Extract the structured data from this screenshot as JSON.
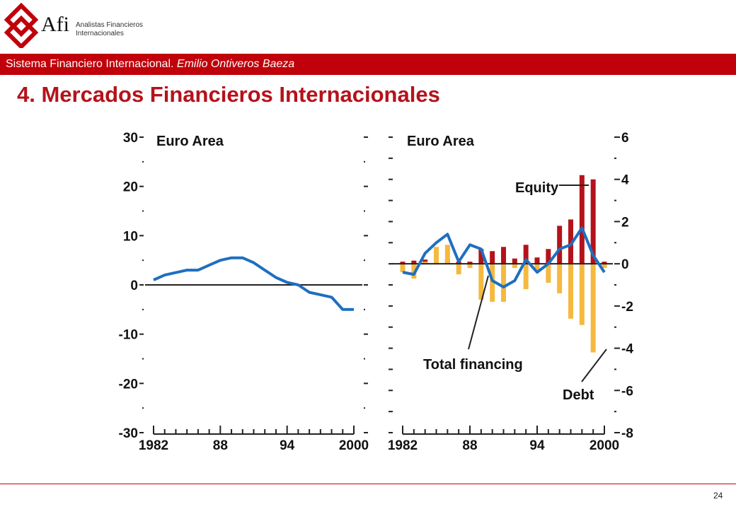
{
  "header": {
    "logo_text": "Afi",
    "org_line1": "Analistas Financieros",
    "org_line2": "Internacionales"
  },
  "banner": {
    "text_plain": "Sistema Financiero Internacional. ",
    "text_italic": "Emilio Ontiveros Baeza"
  },
  "title": "4. Mercados Financieros Internacionales",
  "footer": {
    "page_number": "24"
  },
  "colors": {
    "brand_red": "#c0000a",
    "title_red": "#b5121b",
    "line_blue": "#1e6fc0",
    "equity_red": "#b5121b",
    "debt_orange": "#f5b93f"
  },
  "chart_data": [
    {
      "type": "line",
      "title": "Euro Area",
      "x": [
        1982,
        1983,
        1984,
        1985,
        1986,
        1987,
        1988,
        1989,
        1990,
        1991,
        1992,
        1993,
        1994,
        1995,
        1996,
        1997,
        1998,
        1999,
        2000
      ],
      "xticks": [
        "1982",
        "88",
        "94",
        "2000"
      ],
      "yticks": [
        "30",
        "20",
        "10",
        "0",
        "-10",
        "-20",
        "-30"
      ],
      "ylim": [
        -30,
        30
      ],
      "series": [
        {
          "values": [
            1,
            2,
            2.5,
            3,
            3,
            4,
            5,
            5.5,
            5.5,
            4.5,
            3,
            1.5,
            0.5,
            0,
            -1.5,
            -2,
            -2.5,
            -5,
            -5
          ]
        }
      ],
      "grid": false
    },
    {
      "type": "bar",
      "title": "Euro Area",
      "x": [
        1982,
        1983,
        1984,
        1985,
        1986,
        1987,
        1988,
        1989,
        1990,
        1991,
        1992,
        1993,
        1994,
        1995,
        1996,
        1997,
        1998,
        1999,
        2000
      ],
      "xticks": [
        "1982",
        "88",
        "94",
        "2000"
      ],
      "yticks": [
        "6",
        "4",
        "2",
        "0",
        "-2",
        "-4",
        "-6",
        "-8"
      ],
      "ylim": [
        -8,
        6
      ],
      "series": [
        {
          "name": "Equity",
          "values": [
            0.1,
            0.15,
            0.2,
            0.1,
            0.2,
            0.1,
            0.1,
            0.7,
            0.6,
            0.8,
            0.25,
            0.9,
            0.3,
            0.7,
            1.8,
            2.1,
            4.2,
            4.0,
            0.1
          ]
        },
        {
          "name": "Debt",
          "values": [
            -0.4,
            -0.7,
            0.1,
            0.8,
            0.9,
            -0.5,
            -0.2,
            -1.7,
            -1.8,
            -1.8,
            -0.2,
            -1.2,
            -0.3,
            -0.9,
            -1.4,
            -2.6,
            -2.9,
            -4.2,
            -0.2
          ]
        },
        {
          "name": "Total financing",
          "values": [
            -0.4,
            -0.5,
            0.5,
            1.0,
            1.4,
            0.1,
            0.9,
            0.7,
            -0.8,
            -1.1,
            -0.8,
            0.2,
            -0.4,
            0.0,
            0.7,
            0.9,
            1.7,
            0.4,
            -0.4
          ]
        }
      ],
      "annotations": [
        "Equity",
        "Total financing",
        "Debt"
      ],
      "grid": false
    }
  ]
}
